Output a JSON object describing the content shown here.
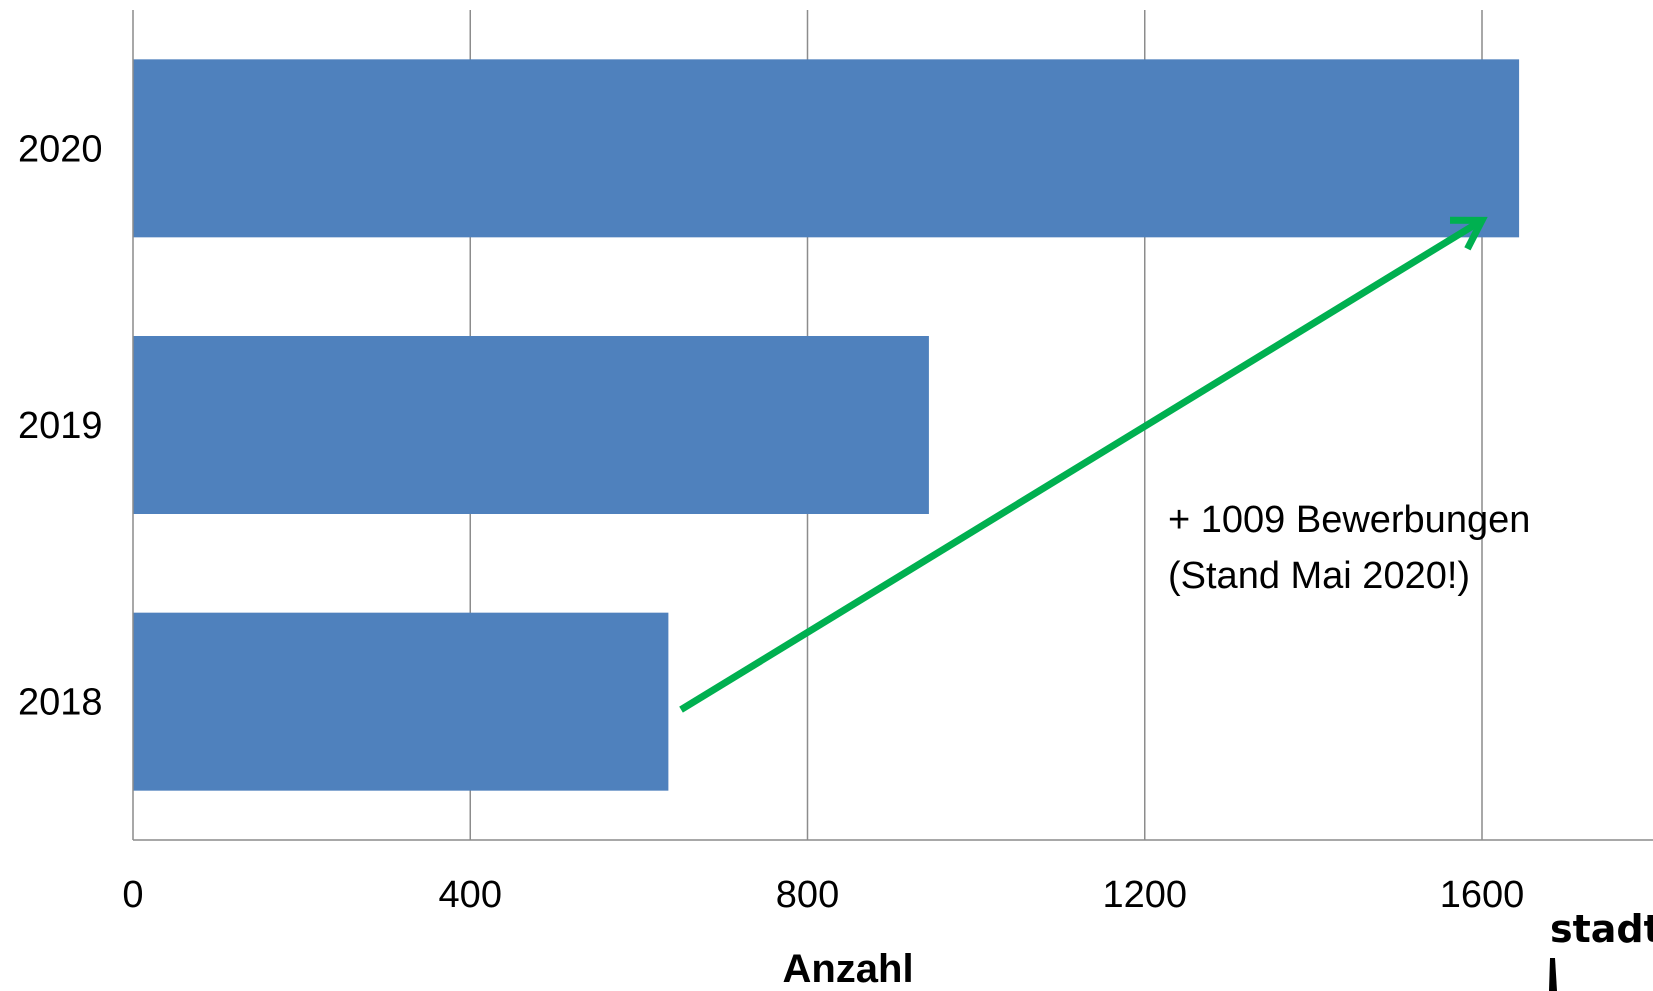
{
  "chart_data": {
    "type": "bar",
    "orientation": "horizontal",
    "categories": [
      "2018",
      "2019",
      "2020"
    ],
    "values": [
      635,
      944,
      1644
    ],
    "xlabel": "Anzahl",
    "ylabel": "",
    "xlim": [
      0,
      1800
    ],
    "xticks": [
      "0",
      "400",
      "800",
      "1200",
      "1600"
    ],
    "grid": "vertical",
    "bar_color": "#4f81bd",
    "annotation": {
      "lines": [
        "+ 1009 Bewerbungen",
        "(Stand Mai 2020!)"
      ],
      "arrow_color": "#00b050",
      "arrow_from": [
        "2018",
        650
      ],
      "arrow_to": [
        "2020",
        1600
      ]
    }
  },
  "logo": {
    "text": "stadt"
  }
}
